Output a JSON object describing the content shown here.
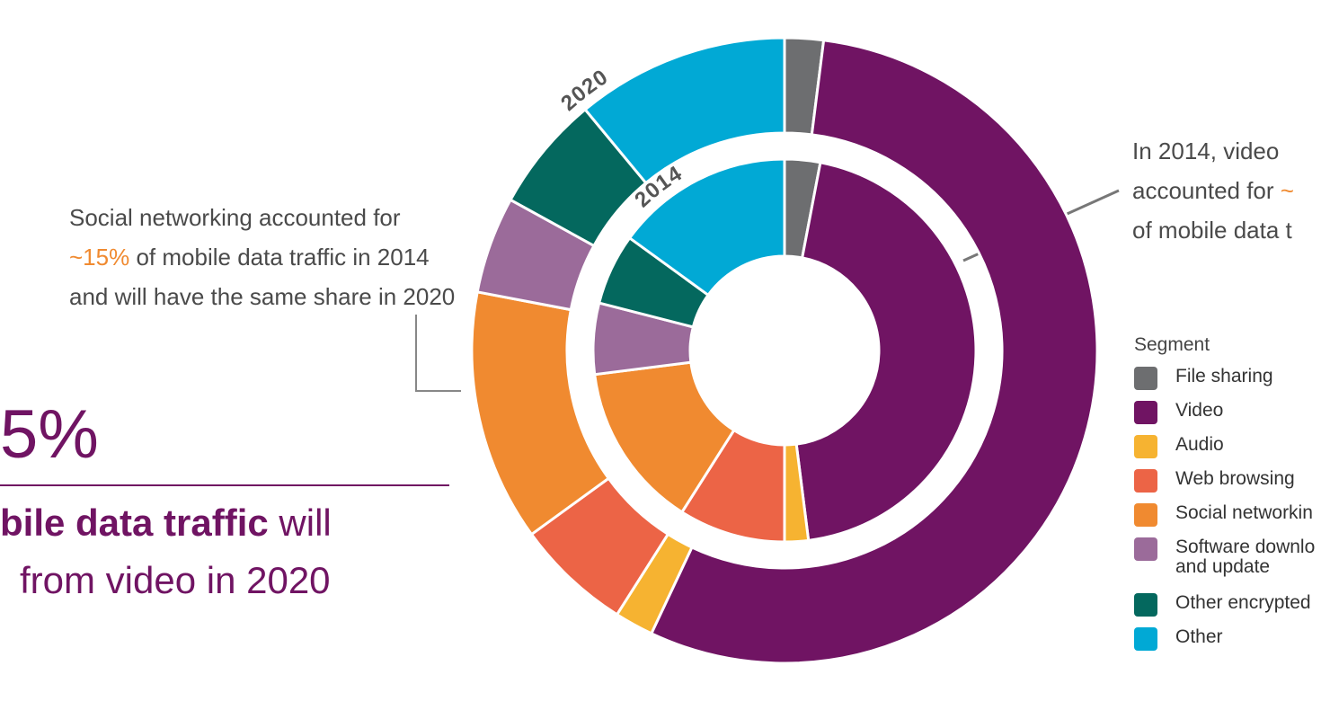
{
  "chart_data": {
    "type": "donut",
    "categories": [
      "File sharing",
      "Video",
      "Audio",
      "Web browsing",
      "Social networkin",
      "Software downlo\nand update",
      "Other encrypted",
      "Other"
    ],
    "colors": [
      "#6d6e70",
      "#701463",
      "#f6b331",
      "#ec6446",
      "#f08a30",
      "#9b6b9a",
      "#04685e",
      "#01a9d5"
    ],
    "series": [
      {
        "name": "2020",
        "values": [
          2,
          55,
          2,
          6,
          13,
          5,
          6,
          11
        ]
      },
      {
        "name": "2014",
        "values": [
          3,
          45,
          2,
          9,
          14,
          6,
          6,
          15
        ]
      }
    ],
    "legend_title": "Segment",
    "social_note": {
      "before": "Social networking accounted for",
      "highlight": "~15%",
      "after": "of mobile data traffic in 2014 and will have the same share in 2020"
    },
    "video_note": {
      "lines": [
        "In 2014, video",
        "accounted for"
      ],
      "highlight": "~",
      "last": "of mobile data t"
    },
    "headline": {
      "stat": "5%",
      "bold": "bile data traffic",
      "rest": "will",
      "line2": "from video in 2020"
    }
  }
}
